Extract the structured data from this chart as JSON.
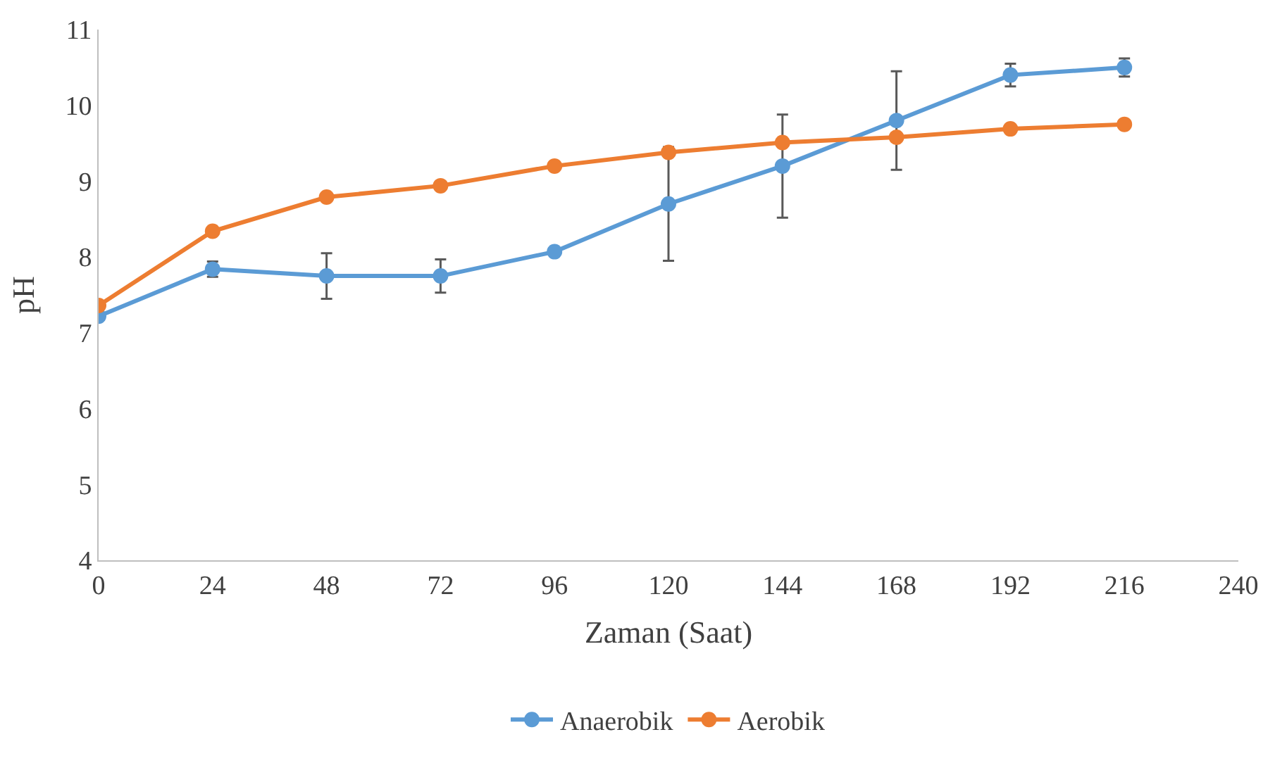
{
  "chart_data": {
    "type": "line",
    "xlabel": "Zaman (Saat)",
    "ylabel": "pH",
    "x": [
      0,
      24,
      48,
      72,
      96,
      120,
      144,
      168,
      192,
      216
    ],
    "series": [
      {
        "name": "Anaerobik",
        "color": "#5b9bd5",
        "values": [
          7.22,
          7.84,
          7.75,
          7.75,
          8.07,
          8.7,
          9.2,
          9.8,
          10.4,
          10.5
        ],
        "errors": [
          null,
          0.1,
          0.3,
          0.22,
          null,
          0.75,
          0.68,
          0.65,
          0.15,
          0.12
        ]
      },
      {
        "name": "Aerobik",
        "color": "#ed7d31",
        "values": [
          7.36,
          8.34,
          8.79,
          8.94,
          9.2,
          9.38,
          9.51,
          9.58,
          9.69,
          9.75
        ]
      }
    ],
    "xlim": [
      0,
      240
    ],
    "xticks": [
      0,
      24,
      48,
      72,
      96,
      120,
      144,
      168,
      192,
      216,
      240
    ],
    "ylim": [
      4,
      11
    ],
    "yticks": [
      4,
      5,
      6,
      7,
      8,
      9,
      10,
      11
    ],
    "legend": "bottom",
    "marker": "circle",
    "line_style": "solid"
  }
}
